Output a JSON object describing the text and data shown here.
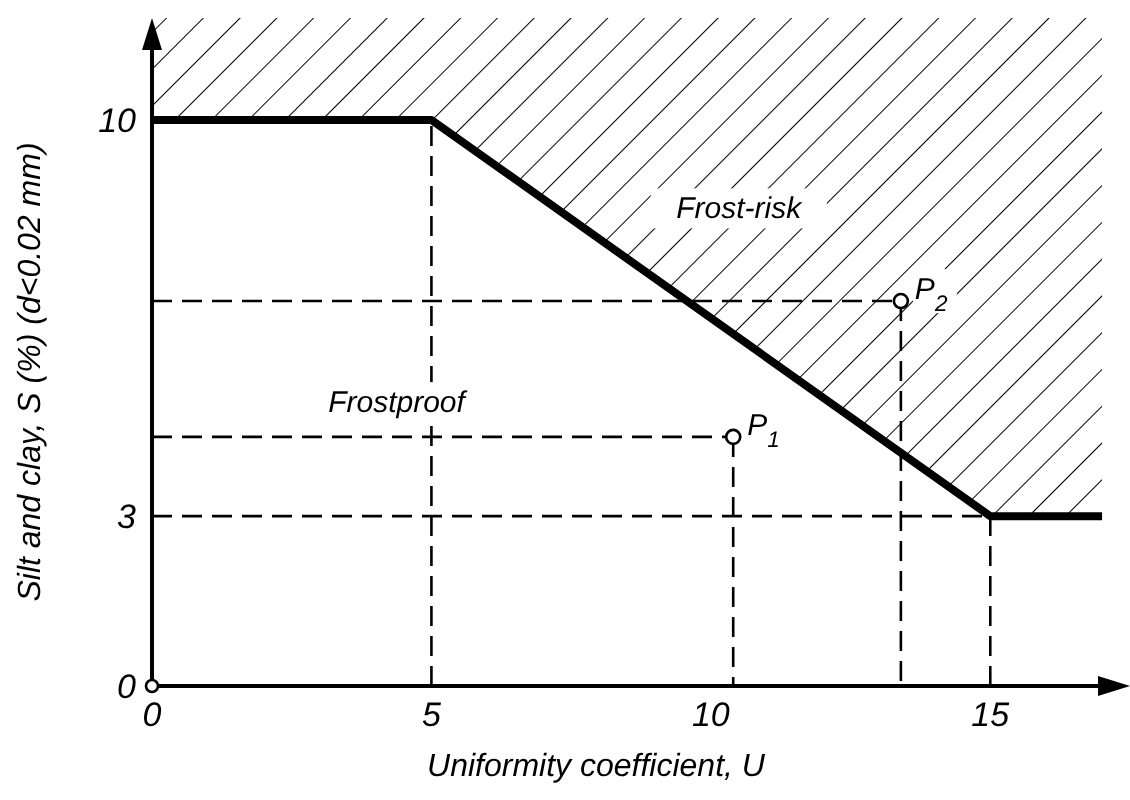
{
  "chart_data": {
    "type": "line",
    "xlabel": "Uniformity coefficient, U",
    "ylabel": "Silt and clay, S (%) (d<0.02 mm)",
    "xlim": [
      0,
      17.5
    ],
    "ylim": [
      0,
      11.8
    ],
    "xticks": [
      0,
      5,
      10,
      15
    ],
    "yticks": [
      0,
      3,
      10
    ],
    "grid": false,
    "series": [
      {
        "color": "#000000",
        "x": [
          0,
          5,
          15,
          17
        ],
        "values": [
          10,
          10,
          3,
          3
        ],
        "lower": [
          10,
          10,
          3,
          3
        ],
        "upper": [
          11.8,
          11.8,
          11.8,
          11.8
        ],
        "line_style": "solid"
      },
      {
        "type": "scatter",
        "color": "#000000",
        "x": [
          10.4,
          13.4
        ],
        "values": [
          4.4,
          6.8
        ],
        "marker": "circle"
      }
    ],
    "ref_lines": [
      {
        "axis": "x",
        "value": 5,
        "line_style": "dashed"
      },
      {
        "axis": "x",
        "value": 15,
        "line_style": "dashed"
      },
      {
        "axis": "y",
        "value": 3,
        "line_style": "dashed"
      }
    ],
    "annotations": [
      "Frost-risk",
      "Frostproof",
      {
        "text": "P$_{1}$",
        "x": 10.4,
        "y": 4.4
      },
      {
        "text": "P$_{2}$",
        "x": 13.4,
        "y": 6.8
      }
    ]
  }
}
